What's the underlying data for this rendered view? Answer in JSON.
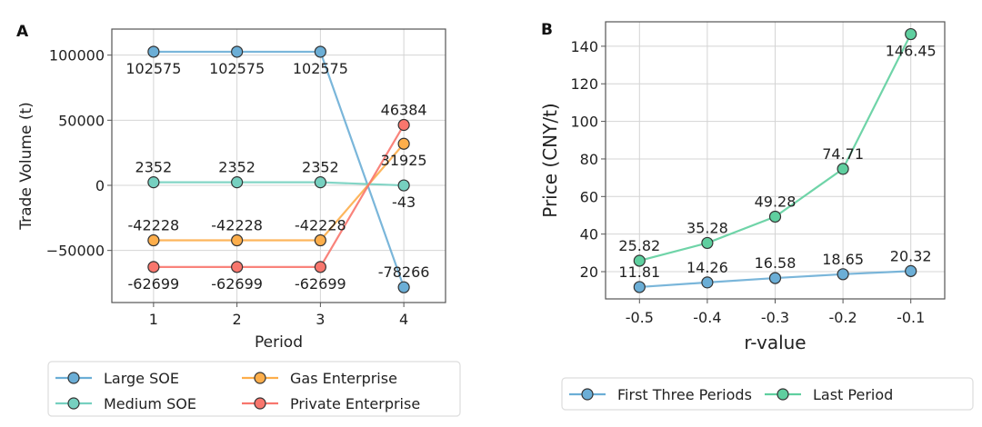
{
  "chart_data": [
    {
      "type": "line",
      "panel": "A",
      "title": "",
      "xlabel": "Period",
      "ylabel": "Trade Volume (t)",
      "x": [
        1,
        2,
        3,
        4
      ],
      "xticks": [
        "1",
        "2",
        "3",
        "4"
      ],
      "yticks": [
        100000,
        50000,
        0,
        -50000
      ],
      "ytick_labels": [
        "100000",
        "50000",
        "0",
        "−50000"
      ],
      "ylim": [
        -90000,
        120000
      ],
      "xlim": [
        0.5,
        4.5
      ],
      "grid": true,
      "legend_position": "bottom-center",
      "series": [
        {
          "name": "Large SOE",
          "color": "#6baed6",
          "values": [
            102575,
            102575,
            102575,
            -78266
          ],
          "labels": [
            "102575",
            "102575",
            "102575",
            "-78266"
          ],
          "label_pos": [
            "below",
            "below",
            "below",
            "above"
          ]
        },
        {
          "name": "Medium SOE",
          "color": "#76d0c0",
          "values": [
            2352,
            2352,
            2352,
            -43
          ],
          "labels": [
            "2352",
            "2352",
            "2352",
            "-43"
          ],
          "label_pos": [
            "above",
            "above",
            "above",
            "below"
          ]
        },
        {
          "name": "Gas Enterprise",
          "color": "#fdae4b",
          "values": [
            -42228,
            -42228,
            -42228,
            31925
          ],
          "labels": [
            "-42228",
            "-42228",
            "-42228",
            "31925"
          ],
          "label_pos": [
            "above",
            "above",
            "above",
            "below"
          ]
        },
        {
          "name": "Private Enterprise",
          "color": "#f8766d",
          "values": [
            -62699,
            -62699,
            -62699,
            46384
          ],
          "labels": [
            "-62699",
            "-62699",
            "-62699",
            "46384"
          ],
          "label_pos": [
            "below",
            "below",
            "below",
            "above"
          ]
        }
      ]
    },
    {
      "type": "line",
      "panel": "B",
      "title": "",
      "xlabel": "r-value",
      "ylabel": "Price (CNY/t)",
      "x": [
        -0.5,
        -0.4,
        -0.3,
        -0.2,
        -0.1
      ],
      "xticks": [
        "-0.5",
        "-0.4",
        "-0.3",
        "-0.2",
        "-0.1"
      ],
      "yticks": [
        20,
        40,
        60,
        80,
        100,
        120,
        140
      ],
      "ytick_labels": [
        "20",
        "40",
        "60",
        "80",
        "100",
        "120",
        "140"
      ],
      "ylim": [
        5.5,
        153
      ],
      "xlim": [
        -0.55,
        -0.05
      ],
      "grid": true,
      "legend_position": "bottom-center",
      "series": [
        {
          "name": "First Three Periods",
          "color": "#6baed6",
          "values": [
            11.81,
            14.26,
            16.58,
            18.65,
            20.32
          ],
          "labels": [
            "11.81",
            "14.26",
            "16.58",
            "18.65",
            "20.32"
          ],
          "label_pos": [
            "above",
            "above",
            "above",
            "above",
            "above"
          ]
        },
        {
          "name": "Last Period",
          "color": "#5fcf9f",
          "values": [
            25.82,
            35.28,
            49.28,
            74.71,
            146.45
          ],
          "labels": [
            "25.82",
            "35.28",
            "49.28",
            "74.71",
            "146.45"
          ],
          "label_pos": [
            "above",
            "above",
            "above",
            "above",
            "below"
          ]
        }
      ]
    }
  ]
}
